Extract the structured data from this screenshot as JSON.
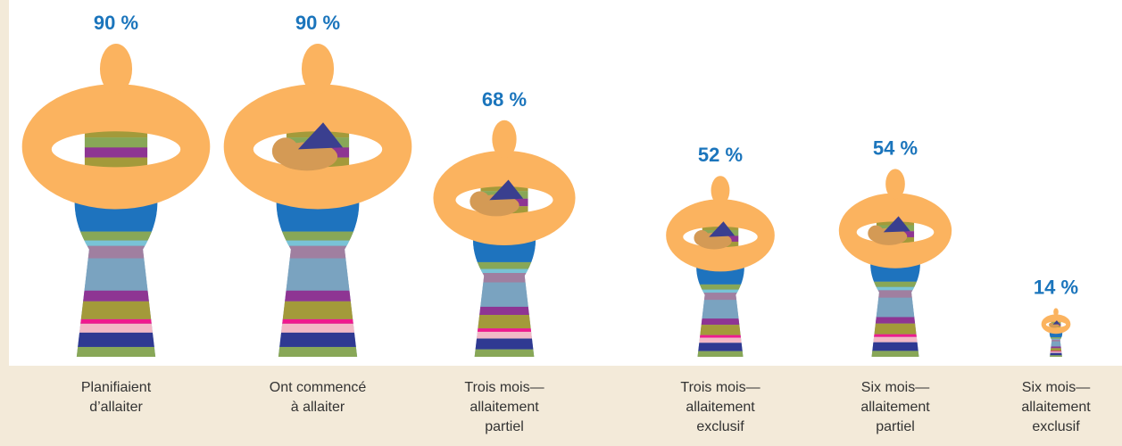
{
  "chart_data": {
    "type": "pictogram",
    "categories": [
      "Planifiaient d’allaiter",
      "Ont commencé à allaiter",
      "Trois mois—allaitement partiel",
      "Trois mois—allaitement exclusif",
      "Six mois—allaitement partiel",
      "Six mois—allaitement exclusif"
    ],
    "values": [
      90,
      90,
      68,
      52,
      54,
      14
    ],
    "value_labels": [
      "90 %",
      "90 %",
      "68 %",
      "52 %",
      "54 %",
      "14 %"
    ],
    "color": "#fbb35f"
  }
}
